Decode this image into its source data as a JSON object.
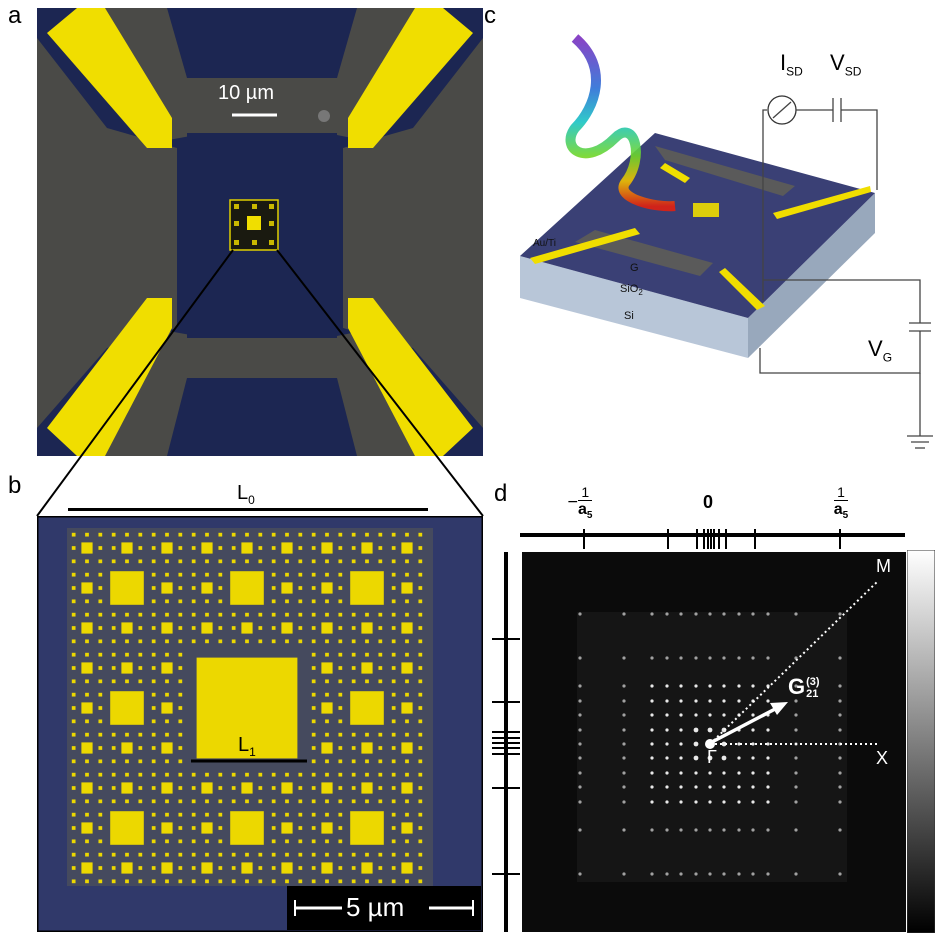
{
  "panels": {
    "a": {
      "letter": "a",
      "scalebar": "10 µm"
    },
    "b": {
      "letter": "b",
      "L0": "L",
      "L0_sub": "0",
      "L1": "L",
      "L1_sub": "1",
      "scalebar": "5 µm"
    },
    "c": {
      "letter": "c",
      "isd": "I",
      "isd_sub": "SD",
      "vsd": "V",
      "vsd_sub": "SD",
      "vg": "V",
      "vg_sub": "G",
      "layer_auti": "Au/Ti",
      "layer_g": "G",
      "layer_sio2": "SiO",
      "layer_sio2_sub": "2",
      "layer_si": "Si"
    },
    "d": {
      "letter": "d",
      "tick_neg_num": "1",
      "tick_neg_sign": "−",
      "tick_neg_den": "a",
      "tick_neg_den_sub": "5",
      "tick_zero": "0",
      "tick_pos_num": "1",
      "tick_pos_den": "a",
      "tick_pos_den_sub": "5",
      "label_m": "M",
      "label_x": "X",
      "label_gamma": "Γ",
      "label_g": "G",
      "label_g_sup": "(3)",
      "label_g_sub": "21"
    }
  },
  "colors": {
    "substrate": "#1b2551",
    "lead_gray": "#4b4b48",
    "gold": "#f2e200",
    "fft_bg": "#0b0b0b"
  }
}
